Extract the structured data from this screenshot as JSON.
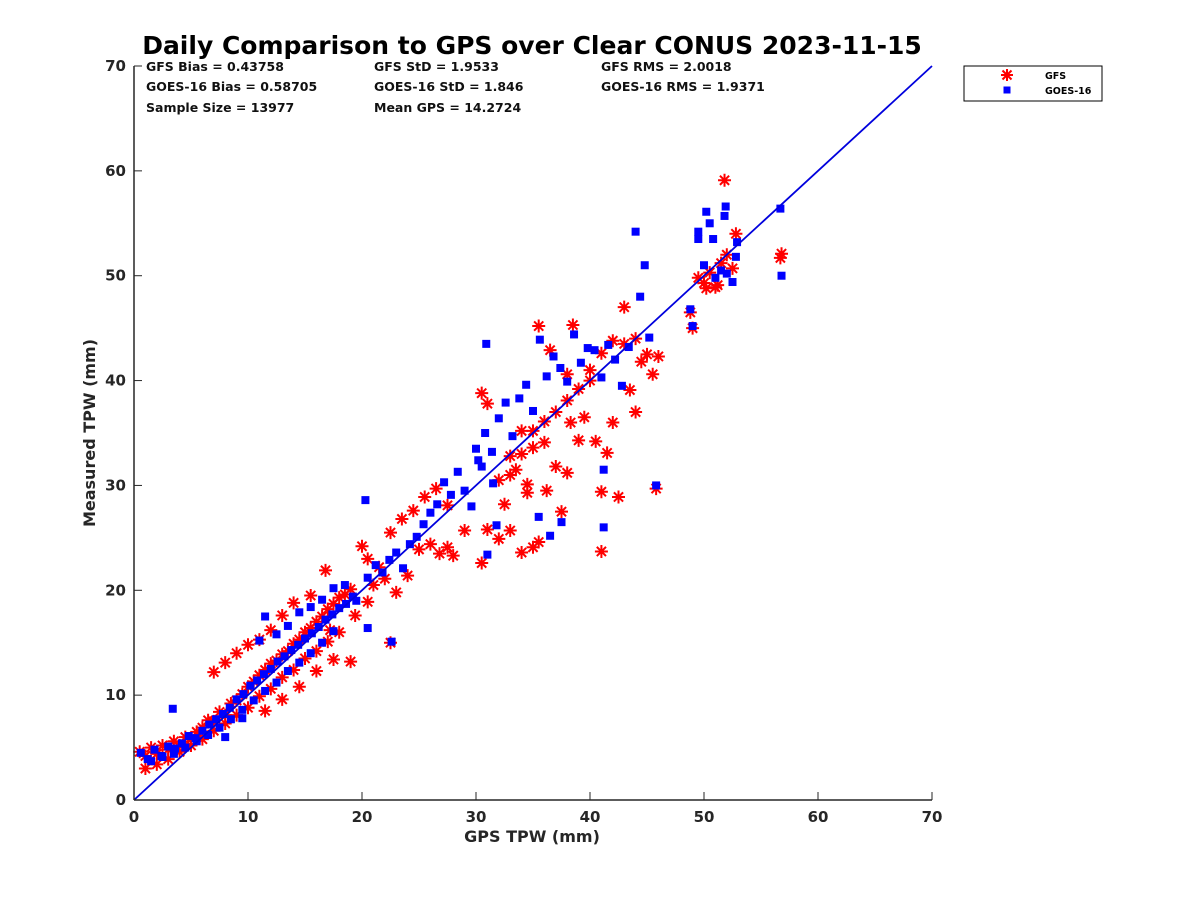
{
  "chart_data": {
    "type": "scatter",
    "title": "Daily Comparison to GPS over Clear CONUS 2023-11-15",
    "xlabel": "GPS TPW (mm)",
    "ylabel": "Measured TPW (mm)",
    "xlim": [
      0,
      70
    ],
    "ylim": [
      0,
      70
    ],
    "xticks": [
      "0",
      "10",
      "20",
      "30",
      "40",
      "50",
      "60",
      "70"
    ],
    "yticks": [
      "0",
      "10",
      "20",
      "30",
      "40",
      "50",
      "60",
      "70"
    ],
    "stats": [
      [
        "GFS Bias = 0.43758",
        "GFS StD = 1.9533",
        "GFS RMS = 2.0018"
      ],
      [
        "GOES-16 Bias = 0.58705",
        "GOES-16 StD = 1.846",
        "GOES-16 RMS = 1.9371"
      ],
      [
        "Sample Size = 13977",
        "Mean GPS = 14.2724"
      ]
    ],
    "reference_line": {
      "name": "1:1",
      "x": [
        0,
        70
      ],
      "y": [
        0,
        70
      ],
      "color": "#0000dd"
    },
    "legend_position": "outside-top-right",
    "series": [
      {
        "name": "GFS",
        "marker": "asterisk",
        "color": "#ff0000",
        "points": [
          [
            0.5,
            4.6
          ],
          [
            1,
            4.2
          ],
          [
            1.5,
            5
          ],
          [
            2,
            4.4
          ],
          [
            2.5,
            5.2
          ],
          [
            3,
            4.8
          ],
          [
            3.5,
            5.6
          ],
          [
            4,
            5.2
          ],
          [
            4.5,
            6
          ],
          [
            5,
            5.8
          ],
          [
            5.5,
            6.5
          ],
          [
            6,
            6.9
          ],
          [
            6.5,
            7.6
          ],
          [
            7,
            7.5
          ],
          [
            7.5,
            8.4
          ],
          [
            8,
            8.1
          ],
          [
            8.5,
            9.2
          ],
          [
            9,
            9.5
          ],
          [
            9.5,
            10.1
          ],
          [
            10,
            10.8
          ],
          [
            10.5,
            11.3
          ],
          [
            11,
            11.9
          ],
          [
            11.5,
            12.4
          ],
          [
            12,
            13
          ],
          [
            12.5,
            13.3
          ],
          [
            13,
            13.9
          ],
          [
            13.5,
            14.2
          ],
          [
            14,
            14.9
          ],
          [
            14.5,
            15.3
          ],
          [
            15,
            16
          ],
          [
            15.5,
            16.4
          ],
          [
            16,
            17
          ],
          [
            16.5,
            17.5
          ],
          [
            17,
            18.2
          ],
          [
            17.5,
            18.7
          ],
          [
            18,
            19.3
          ],
          [
            18.5,
            19.6
          ],
          [
            19,
            20.1
          ],
          [
            1,
            3
          ],
          [
            2,
            3.4
          ],
          [
            3,
            3.9
          ],
          [
            4,
            4.6
          ],
          [
            5,
            5.2
          ],
          [
            6,
            5.8
          ],
          [
            7,
            6.6
          ],
          [
            8,
            7.3
          ],
          [
            9,
            8.1
          ],
          [
            10,
            8.8
          ],
          [
            11,
            9.9
          ],
          [
            12,
            10.6
          ],
          [
            13,
            11.7
          ],
          [
            14,
            12.4
          ],
          [
            15,
            13.5
          ],
          [
            16,
            14.2
          ],
          [
            17,
            15.1
          ],
          [
            18,
            16
          ],
          [
            7,
            12.2
          ],
          [
            8,
            13.1
          ],
          [
            9,
            14
          ],
          [
            10,
            14.8
          ],
          [
            11,
            15.3
          ],
          [
            12,
            16.2
          ],
          [
            13,
            17.6
          ],
          [
            14,
            18.8
          ],
          [
            15.5,
            19.5
          ],
          [
            16.8,
            21.9
          ],
          [
            11.5,
            8.5
          ],
          [
            13,
            9.6
          ],
          [
            14.5,
            10.8
          ],
          [
            16,
            12.3
          ],
          [
            17.5,
            13.4
          ],
          [
            19,
            13.2
          ],
          [
            17.2,
            16.2
          ],
          [
            19.4,
            17.6
          ],
          [
            20.5,
            18.9
          ],
          [
            21,
            20.5
          ],
          [
            22,
            21.1
          ],
          [
            22.5,
            15
          ],
          [
            23,
            19.8
          ],
          [
            24,
            21.4
          ],
          [
            20,
            24.2
          ],
          [
            20.5,
            23
          ],
          [
            21.5,
            22.2
          ],
          [
            22.5,
            25.5
          ],
          [
            23.5,
            26.8
          ],
          [
            24.5,
            27.6
          ],
          [
            25.5,
            28.9
          ],
          [
            26.5,
            29.7
          ],
          [
            27.5,
            28.1
          ],
          [
            25,
            23.9
          ],
          [
            26,
            24.4
          ],
          [
            26.8,
            23.5
          ],
          [
            27.5,
            24.1
          ],
          [
            28,
            23.3
          ],
          [
            29,
            25.7
          ],
          [
            30.5,
            22.6
          ],
          [
            31,
            25.8
          ],
          [
            32,
            24.9
          ],
          [
            33,
            25.7
          ],
          [
            34,
            23.6
          ],
          [
            35,
            24.1
          ],
          [
            35.5,
            24.6
          ],
          [
            30.5,
            38.8
          ],
          [
            31,
            37.8
          ],
          [
            32,
            30.5
          ],
          [
            32.5,
            28.2
          ],
          [
            33,
            32.8
          ],
          [
            33.5,
            31.5
          ],
          [
            34,
            35.2
          ],
          [
            34.5,
            29.3
          ],
          [
            35,
            33.6
          ],
          [
            35.5,
            45.2
          ],
          [
            36,
            36.1
          ],
          [
            36.5,
            42.9
          ],
          [
            37,
            31.8
          ],
          [
            37.5,
            27.5
          ],
          [
            38,
            40.6
          ],
          [
            38.5,
            45.3
          ],
          [
            38,
            31.2
          ],
          [
            39,
            34.3
          ],
          [
            39.5,
            36.5
          ],
          [
            40,
            40
          ],
          [
            40.5,
            34.2
          ],
          [
            41,
            29.4
          ],
          [
            41,
            23.7
          ],
          [
            41.5,
            33.1
          ],
          [
            42,
            36
          ],
          [
            42.5,
            28.9
          ],
          [
            43,
            47
          ],
          [
            43.5,
            39.1
          ],
          [
            44,
            37
          ],
          [
            44.5,
            41.8
          ],
          [
            45,
            42.5
          ],
          [
            45.5,
            40.6
          ],
          [
            45.8,
            29.7
          ],
          [
            46,
            42.3
          ],
          [
            34,
            33
          ],
          [
            35,
            35.2
          ],
          [
            36,
            34.1
          ],
          [
            37,
            37
          ],
          [
            38,
            38.1
          ],
          [
            39,
            39.2
          ],
          [
            40,
            41
          ],
          [
            41,
            42.6
          ],
          [
            42,
            43.8
          ],
          [
            43,
            43.5
          ],
          [
            44,
            44
          ],
          [
            33,
            31
          ],
          [
            34.5,
            30.1
          ],
          [
            36.2,
            29.5
          ],
          [
            38.3,
            36
          ],
          [
            48.8,
            46.5
          ],
          [
            49,
            45
          ],
          [
            49.5,
            49.8
          ],
          [
            50,
            49.3
          ],
          [
            50.5,
            50.3
          ],
          [
            51,
            48.9
          ],
          [
            51.5,
            51.2
          ],
          [
            51.8,
            59.1
          ],
          [
            52,
            52
          ],
          [
            52.5,
            50.7
          ],
          [
            52.8,
            54
          ],
          [
            56.7,
            51.7
          ],
          [
            56.8,
            52.1
          ],
          [
            51.2,
            49.1
          ],
          [
            50.2,
            48.8
          ]
        ]
      },
      {
        "name": "GOES-16",
        "marker": "square",
        "color": "#0000ff",
        "points": [
          [
            0.6,
            4.5
          ],
          [
            1.2,
            3.9
          ],
          [
            1.8,
            4.8
          ],
          [
            2.4,
            4.2
          ],
          [
            3,
            5.1
          ],
          [
            3.4,
            8.7
          ],
          [
            3.6,
            4.9
          ],
          [
            4.2,
            5.4
          ],
          [
            4.8,
            6.1
          ],
          [
            5.4,
            5.9
          ],
          [
            6,
            6.6
          ],
          [
            6.6,
            7.2
          ],
          [
            7.2,
            7.7
          ],
          [
            7.8,
            8.2
          ],
          [
            8.4,
            8.8
          ],
          [
            9,
            9.6
          ],
          [
            9.6,
            10.1
          ],
          [
            10.2,
            10.9
          ],
          [
            10.8,
            11.4
          ],
          [
            11.4,
            12
          ],
          [
            12,
            12.5
          ],
          [
            12.6,
            13.2
          ],
          [
            13.2,
            13.7
          ],
          [
            13.8,
            14.3
          ],
          [
            14.4,
            14.8
          ],
          [
            15,
            15.4
          ],
          [
            15.6,
            15.9
          ],
          [
            16.2,
            16.5
          ],
          [
            16.8,
            17.2
          ],
          [
            17.4,
            17.7
          ],
          [
            18,
            18.3
          ],
          [
            18.6,
            18.7
          ],
          [
            19.2,
            19.4
          ],
          [
            1.5,
            3.7
          ],
          [
            2.5,
            4.1
          ],
          [
            3.5,
            4.4
          ],
          [
            4.5,
            5
          ],
          [
            5.5,
            5.6
          ],
          [
            6.5,
            6.2
          ],
          [
            7.5,
            6.9
          ],
          [
            8.5,
            7.7
          ],
          [
            9.5,
            8.6
          ],
          [
            10.5,
            9.5
          ],
          [
            11.5,
            10.4
          ],
          [
            12.5,
            11.2
          ],
          [
            13.5,
            12.3
          ],
          [
            14.5,
            13.1
          ],
          [
            15.5,
            14
          ],
          [
            16.5,
            15
          ],
          [
            17.5,
            16.1
          ],
          [
            8,
            6
          ],
          [
            9.5,
            7.8
          ],
          [
            11,
            15.2
          ],
          [
            11.5,
            17.5
          ],
          [
            12.5,
            15.8
          ],
          [
            13.5,
            16.6
          ],
          [
            14.5,
            17.9
          ],
          [
            15.5,
            18.4
          ],
          [
            16.5,
            19.1
          ],
          [
            17.5,
            20.2
          ],
          [
            18.5,
            20.5
          ],
          [
            19.5,
            19
          ],
          [
            20.3,
            28.6
          ],
          [
            20.5,
            16.4
          ],
          [
            20.5,
            21.2
          ],
          [
            21.2,
            22.4
          ],
          [
            21.8,
            21.7
          ],
          [
            22.4,
            22.9
          ],
          [
            23,
            23.6
          ],
          [
            23.6,
            22.1
          ],
          [
            24.2,
            24.4
          ],
          [
            24.8,
            25.1
          ],
          [
            25.4,
            26.3
          ],
          [
            26,
            27.4
          ],
          [
            26.6,
            28.2
          ],
          [
            27.2,
            30.3
          ],
          [
            27.8,
            29.1
          ],
          [
            28.4,
            31.3
          ],
          [
            29,
            29.5
          ],
          [
            29.6,
            28
          ],
          [
            22.6,
            15.1
          ],
          [
            30.2,
            32.4
          ],
          [
            30.8,
            35
          ],
          [
            30.9,
            43.5
          ],
          [
            31.4,
            33.2
          ],
          [
            32,
            36.4
          ],
          [
            32.6,
            37.9
          ],
          [
            33.2,
            34.7
          ],
          [
            33.8,
            38.3
          ],
          [
            34.4,
            39.6
          ],
          [
            35,
            37.1
          ],
          [
            35.6,
            43.9
          ],
          [
            36.2,
            40.4
          ],
          [
            36.8,
            42.3
          ],
          [
            37.4,
            41.2
          ],
          [
            38,
            39.9
          ],
          [
            38.6,
            44.4
          ],
          [
            39.2,
            41.7
          ],
          [
            39.8,
            43.1
          ],
          [
            40.4,
            42.9
          ],
          [
            41,
            40.3
          ],
          [
            41.6,
            43.4
          ],
          [
            42.2,
            42
          ],
          [
            42.8,
            39.5
          ],
          [
            43.4,
            43.2
          ],
          [
            44,
            54.2
          ],
          [
            44.4,
            48
          ],
          [
            44.8,
            51
          ],
          [
            45.2,
            44.1
          ],
          [
            45.8,
            30
          ],
          [
            41.2,
            26
          ],
          [
            41.2,
            31.5
          ],
          [
            35.5,
            27
          ],
          [
            36.5,
            25.2
          ],
          [
            37.5,
            26.5
          ],
          [
            31,
            23.4
          ],
          [
            31.8,
            26.2
          ],
          [
            30,
            33.5
          ],
          [
            30.5,
            31.8
          ],
          [
            31.5,
            30.2
          ],
          [
            48.8,
            46.8
          ],
          [
            49,
            45.2
          ],
          [
            49.5,
            53.5
          ],
          [
            49.5,
            54.2
          ],
          [
            50,
            51
          ],
          [
            50.2,
            56.1
          ],
          [
            50.5,
            55
          ],
          [
            50.8,
            53.5
          ],
          [
            51,
            49.8
          ],
          [
            51.5,
            50.5
          ],
          [
            51.8,
            55.7
          ],
          [
            51.9,
            56.6
          ],
          [
            52,
            50.2
          ],
          [
            52.5,
            49.4
          ],
          [
            52.8,
            51.8
          ],
          [
            52.9,
            53.2
          ],
          [
            56.7,
            56.4
          ],
          [
            56.8,
            50
          ]
        ]
      }
    ]
  }
}
